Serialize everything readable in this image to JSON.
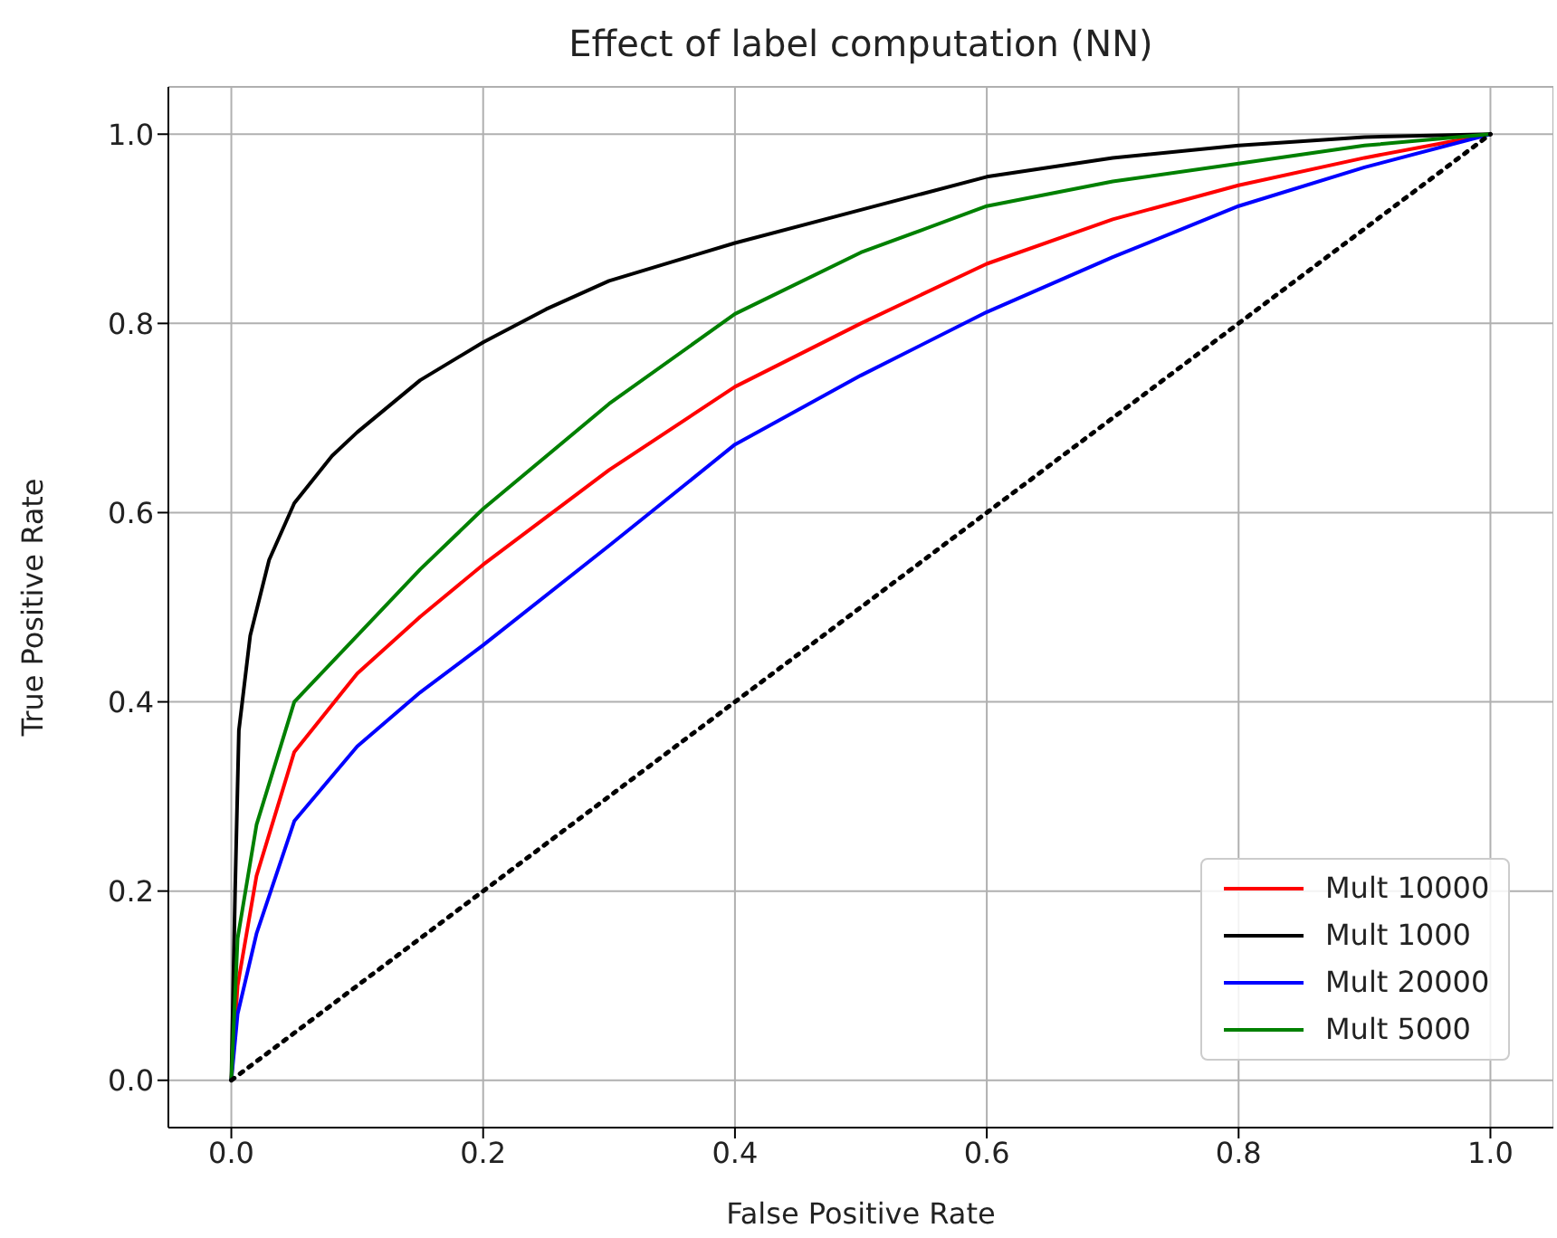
{
  "chart_data": {
    "type": "line",
    "title": "Effect of label computation (NN)",
    "xlabel": "False Positive Rate",
    "ylabel": "True Positive Rate",
    "xlim": [
      -0.05,
      1.05
    ],
    "ylim": [
      -0.05,
      1.05
    ],
    "xticks": [
      {
        "value": 0,
        "label": "0.0"
      },
      0.2,
      0.4,
      0.6,
      0.8,
      {
        "value": 1,
        "label": "1.0"
      }
    ],
    "yticks": [
      {
        "value": 0,
        "label": "0.0"
      },
      0.2,
      0.4,
      0.6,
      0.8,
      {
        "value": 1,
        "label": "1.0"
      }
    ],
    "grid": true,
    "legend": "bottom right",
    "line_style": "solid",
    "series": [
      {
        "name": "Mult 10000",
        "color": "#ff0000",
        "x": [
          0,
          0.005,
          0.02,
          0.05,
          0.1,
          0.15,
          0.2,
          0.3,
          0.4,
          0.5,
          0.6,
          0.7,
          0.8,
          0.9,
          1
        ],
        "values": [
          0,
          0.1,
          0.216,
          0.347,
          0.43,
          0.49,
          0.545,
          0.645,
          0.733,
          0.8,
          0.863,
          0.91,
          0.946,
          0.975,
          1
        ]
      },
      {
        "name": "Mult 1000",
        "color": "#000000",
        "x": [
          0,
          0.003,
          0.006,
          0.015,
          0.03,
          0.05,
          0.08,
          0.1,
          0.15,
          0.2,
          0.25,
          0.3,
          0.35,
          0.4,
          0.5,
          0.6,
          0.7,
          0.8,
          0.9,
          1
        ],
        "values": [
          0,
          0.2,
          0.37,
          0.47,
          0.55,
          0.61,
          0.66,
          0.685,
          0.74,
          0.78,
          0.815,
          0.845,
          0.865,
          0.885,
          0.92,
          0.955,
          0.975,
          0.988,
          0.997,
          1
        ]
      },
      {
        "name": "Mult 20000",
        "color": "#0000ff",
        "x": [
          0,
          0.005,
          0.02,
          0.05,
          0.1,
          0.15,
          0.2,
          0.3,
          0.4,
          0.5,
          0.6,
          0.7,
          0.8,
          0.9,
          1
        ],
        "values": [
          0,
          0.07,
          0.155,
          0.274,
          0.353,
          0.41,
          0.46,
          0.565,
          0.672,
          0.745,
          0.812,
          0.87,
          0.924,
          0.965,
          1
        ]
      },
      {
        "name": "Mult 5000",
        "color": "#008000",
        "x": [
          0,
          0.005,
          0.02,
          0.05,
          0.1,
          0.15,
          0.2,
          0.3,
          0.4,
          0.5,
          0.6,
          0.7,
          0.8,
          0.9,
          1
        ],
        "values": [
          0,
          0.15,
          0.27,
          0.4,
          0.47,
          0.54,
          0.604,
          0.715,
          0.81,
          0.875,
          0.924,
          0.95,
          0.969,
          0.988,
          1
        ]
      },
      {
        "color": "#000000",
        "line_style": "dotted",
        "x": [
          0,
          1
        ],
        "values": [
          0,
          1
        ]
      }
    ]
  }
}
